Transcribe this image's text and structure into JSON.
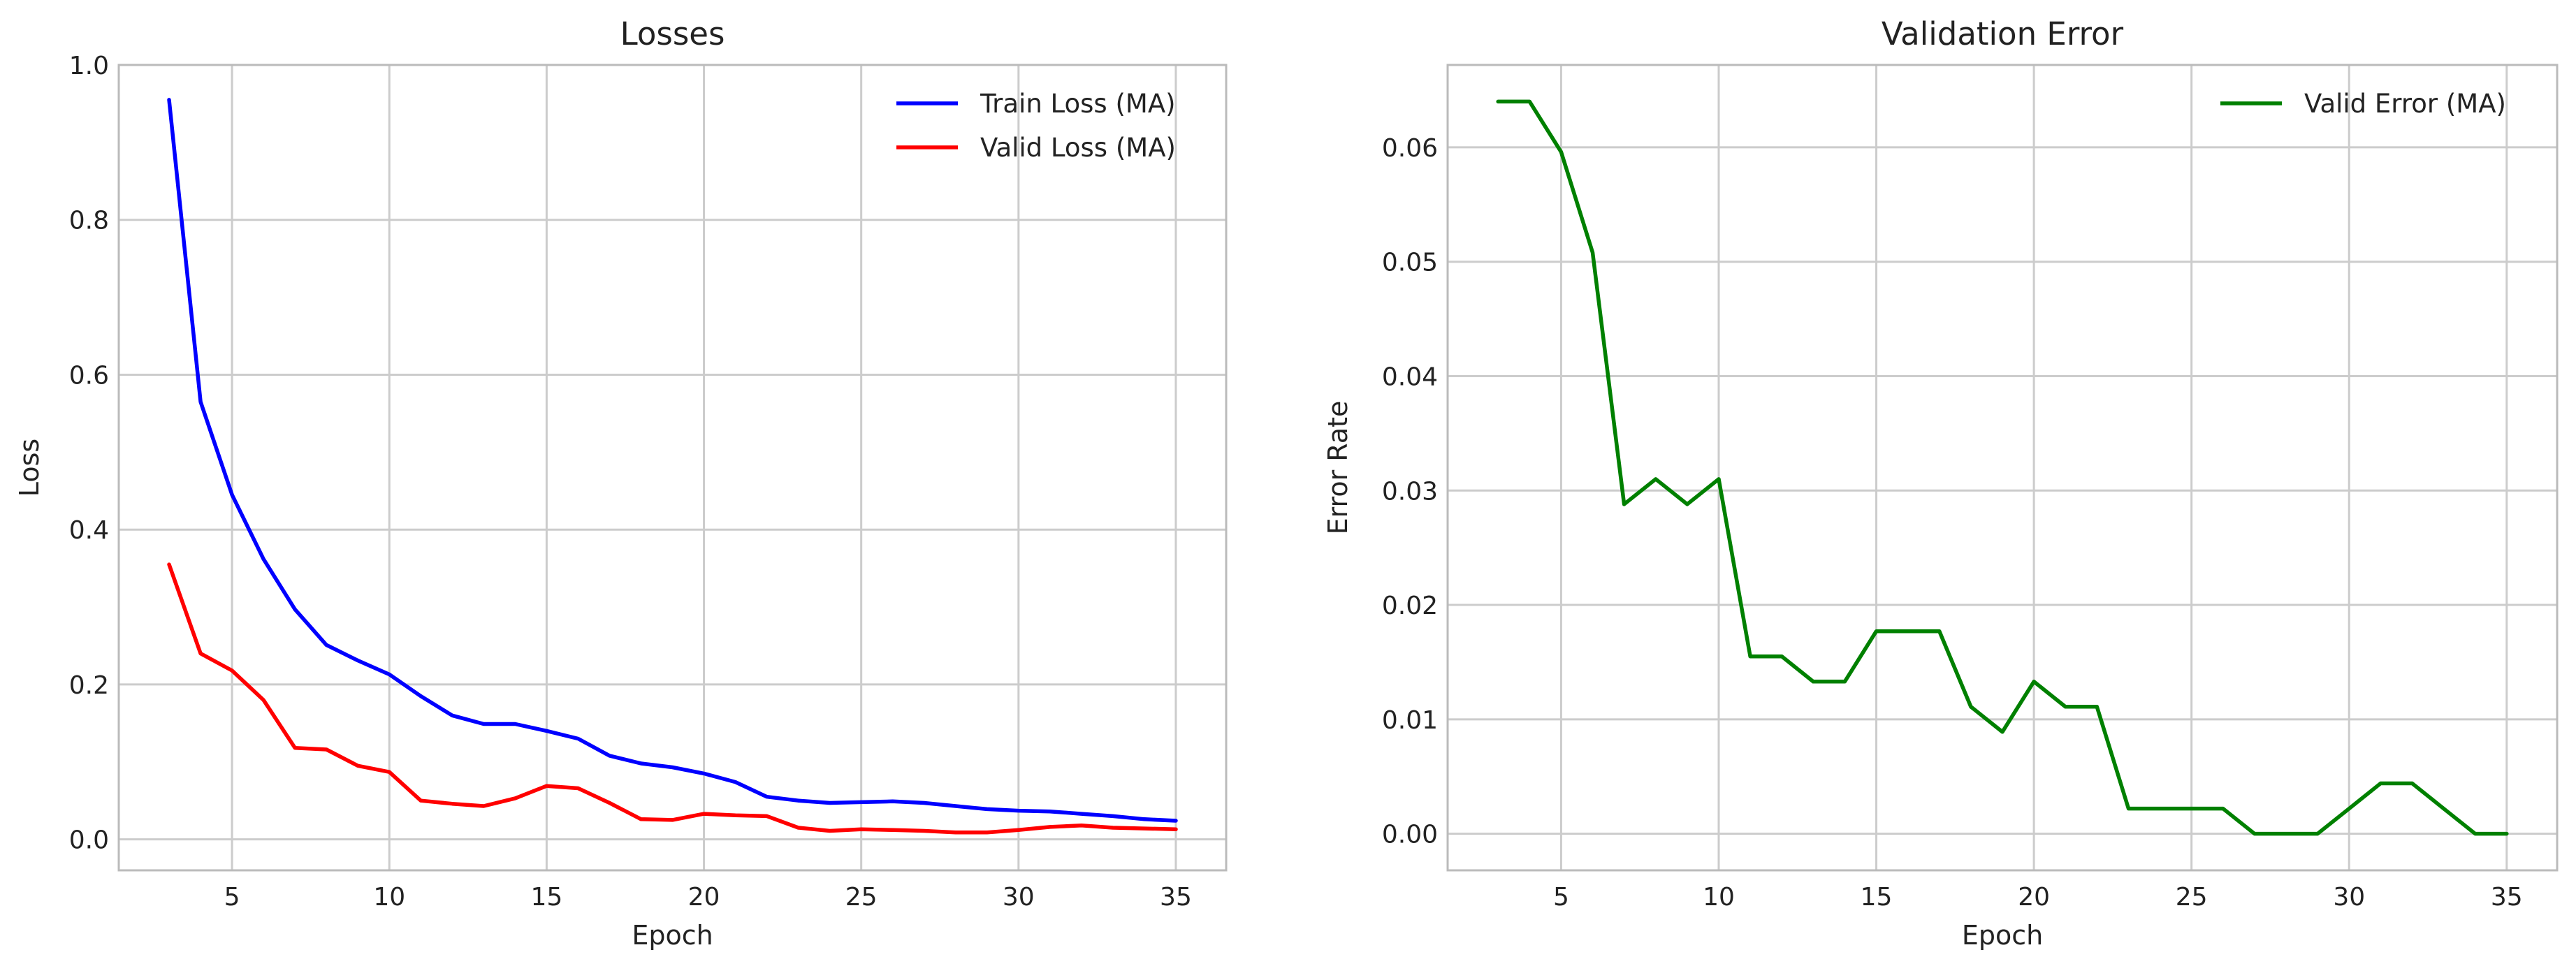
{
  "chart_data": [
    {
      "type": "line",
      "title": "Losses",
      "xlabel": "Epoch",
      "ylabel": "Loss",
      "xlim": [
        1.4,
        36.6
      ],
      "ylim": [
        -0.04,
        1.0
      ],
      "xticks": [
        5,
        10,
        15,
        20,
        25,
        30,
        35
      ],
      "xtick_labels": [
        "5",
        "10",
        "15",
        "20",
        "25",
        "30",
        "35"
      ],
      "yticks": [
        0.0,
        0.2,
        0.4,
        0.6,
        0.8,
        1.0
      ],
      "ytick_labels": [
        "0.0",
        "0.2",
        "0.4",
        "0.6",
        "0.8",
        "1.0"
      ],
      "grid": true,
      "legend_position": "top-right",
      "x": [
        3,
        4,
        5,
        6,
        7,
        8,
        9,
        10,
        11,
        12,
        13,
        14,
        15,
        16,
        17,
        18,
        19,
        20,
        21,
        22,
        23,
        24,
        25,
        26,
        27,
        28,
        29,
        30,
        31,
        32,
        33,
        34,
        35
      ],
      "series": [
        {
          "name": "Train Loss (MA)",
          "color": "#0000ff",
          "values": [
            0.955,
            0.565,
            0.445,
            0.362,
            0.297,
            0.251,
            0.231,
            0.213,
            0.185,
            0.16,
            0.149,
            0.149,
            0.14,
            0.13,
            0.108,
            0.098,
            0.093,
            0.085,
            0.074,
            0.055,
            0.05,
            0.047,
            0.048,
            0.049,
            0.047,
            0.043,
            0.039,
            0.037,
            0.036,
            0.033,
            0.03,
            0.026,
            0.024
          ]
        },
        {
          "name": "Valid Loss (MA)",
          "color": "#ff0000",
          "values": [
            0.355,
            0.24,
            0.218,
            0.18,
            0.118,
            0.116,
            0.095,
            0.087,
            0.05,
            0.046,
            0.043,
            0.053,
            0.069,
            0.066,
            0.047,
            0.026,
            0.025,
            0.033,
            0.031,
            0.03,
            0.015,
            0.011,
            0.013,
            0.012,
            0.011,
            0.009,
            0.009,
            0.012,
            0.016,
            0.018,
            0.015,
            0.014,
            0.013
          ]
        }
      ]
    },
    {
      "type": "line",
      "title": "Validation Error",
      "xlabel": "Epoch",
      "ylabel": "Error Rate",
      "xlim": [
        1.4,
        36.6
      ],
      "ylim": [
        -0.0032,
        0.0672
      ],
      "xticks": [
        5,
        10,
        15,
        20,
        25,
        30,
        35
      ],
      "xtick_labels": [
        "5",
        "10",
        "15",
        "20",
        "25",
        "30",
        "35"
      ],
      "yticks": [
        0.0,
        0.01,
        0.02,
        0.03,
        0.04,
        0.05,
        0.06
      ],
      "ytick_labels": [
        "0.00",
        "0.01",
        "0.02",
        "0.03",
        "0.04",
        "0.05",
        "0.06"
      ],
      "grid": true,
      "legend_position": "top-right",
      "x": [
        3,
        4,
        5,
        6,
        7,
        8,
        9,
        10,
        11,
        12,
        13,
        14,
        15,
        16,
        17,
        18,
        19,
        20,
        21,
        22,
        23,
        24,
        25,
        26,
        27,
        28,
        29,
        30,
        31,
        32,
        33,
        34,
        35
      ],
      "series": [
        {
          "name": "Valid Error (MA)",
          "color": "#008000",
          "values": [
            0.064,
            0.064,
            0.0596,
            0.0508,
            0.0288,
            0.031,
            0.0288,
            0.031,
            0.0155,
            0.0155,
            0.0133,
            0.0133,
            0.0177,
            0.0177,
            0.0177,
            0.0111,
            0.0089,
            0.0133,
            0.0111,
            0.0111,
            0.0022,
            0.0022,
            0.0022,
            0.0022,
            0.0,
            0.0,
            0.0,
            0.0022,
            0.0044,
            0.0044,
            0.0022,
            0.0,
            0.0
          ]
        }
      ]
    }
  ]
}
